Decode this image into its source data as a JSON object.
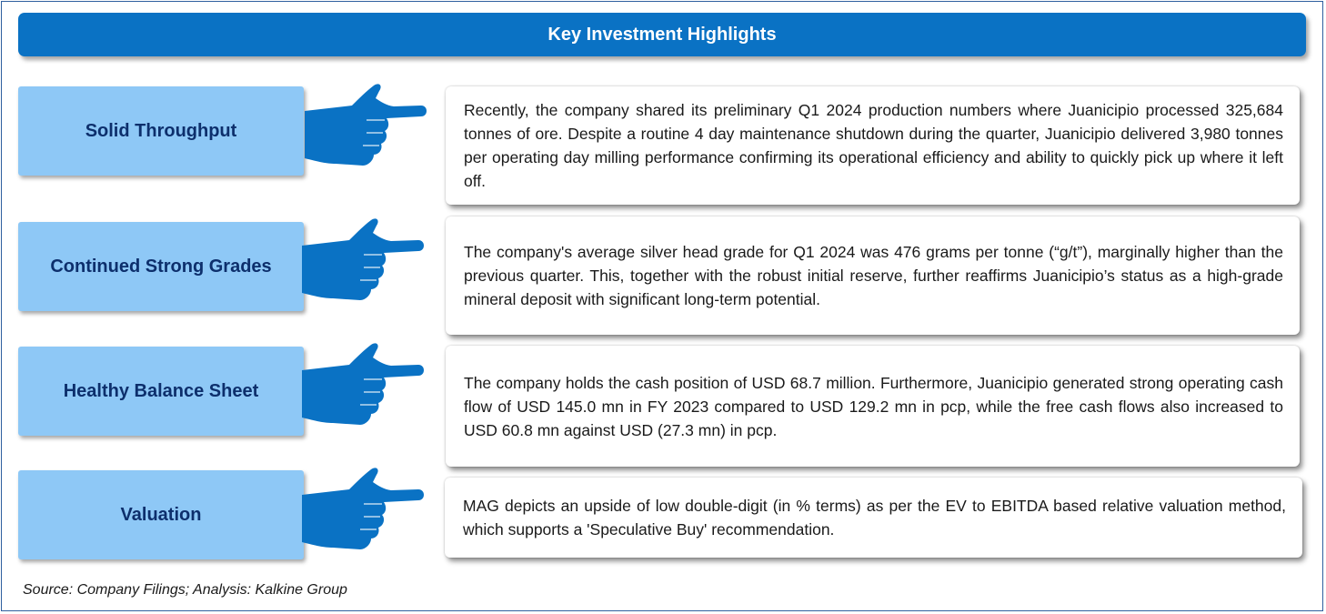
{
  "title": "Key Investment Highlights",
  "rows": [
    {
      "label": "Solid Throughput",
      "text": "Recently, the company shared its preliminary Q1 2024 production numbers where Juanicipio processed 325,684 tonnes of ore. Despite a routine 4 day maintenance shutdown during the quarter, Juanicipio delivered 3,980 tonnes per operating day milling performance confirming its operational efficiency and ability to quickly pick up where it left off."
    },
    {
      "label": "Continued Strong Grades",
      "text": "The company's average silver head grade for Q1 2024 was 476 grams per tonne (“g/t”), marginally higher than the previous quarter. This, together with the robust initial reserve, further reaffirms Juanicipio’s status as a high-grade mineral deposit with significant long-term potential."
    },
    {
      "label": "Healthy Balance Sheet",
      "text": "The company holds the cash position of USD 68.7 million. Furthermore, Juanicipio generated strong operating cash flow of USD 145.0 mn in FY 2023 compared to USD 129.2 mn in pcp, while the free cash flows also increased to USD 60.8 mn against USD (27.3 mn) in pcp."
    },
    {
      "label": "Valuation",
      "text": "MAG depicts an upside of low double-digit (in % terms) as per the EV to EBITDA based relative valuation method, which supports a 'Speculative Buy' recommendation."
    }
  ],
  "icons": {
    "pointer": "pointing-hand-icon"
  },
  "colors": {
    "banner": "#0a72c4",
    "label_fill": "#8ec8f6",
    "label_text": "#0d2f6c",
    "hand": "#0a72c4"
  },
  "source": "Source: Company Filings; Analysis: Kalkine Group"
}
